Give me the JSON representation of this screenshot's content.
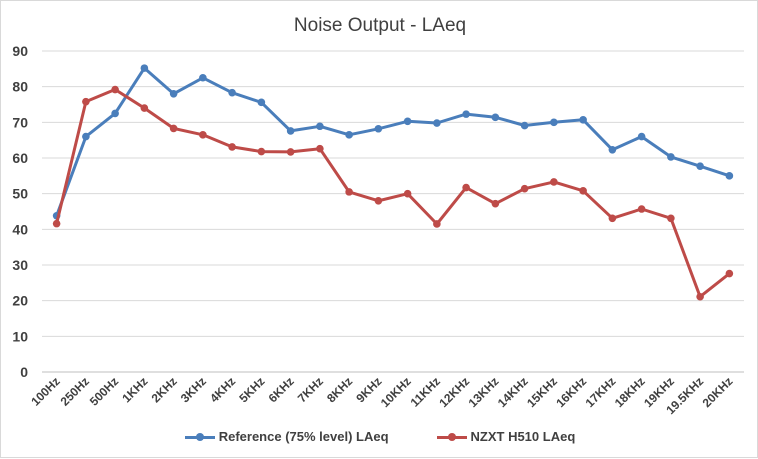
{
  "chart_data": {
    "type": "line",
    "title": "Noise Output - LAeq",
    "xlabel": "",
    "ylabel": "",
    "ylim": [
      0,
      90
    ],
    "yticks": [
      0,
      10,
      20,
      30,
      40,
      50,
      60,
      70,
      80,
      90
    ],
    "grid": true,
    "legend_position": "bottom",
    "categories": [
      "100Hz",
      "250Hz",
      "500Hz",
      "1KHz",
      "2KHz",
      "3KHz",
      "4KHz",
      "5KHz",
      "6KHz",
      "7KHz",
      "8KHz",
      "9KHz",
      "10KHz",
      "11KHz",
      "12KHz",
      "13KHz",
      "14KHz",
      "15KHz",
      "16KHz",
      "17KHz",
      "18KHz",
      "19KHz",
      "19.5KHz",
      "20KHz"
    ],
    "series": [
      {
        "name": "Reference (75% level) LAeq",
        "color": "#4a7ebb",
        "values": [
          43.8,
          66.0,
          72.5,
          85.2,
          78.0,
          82.5,
          78.3,
          75.6,
          67.6,
          68.9,
          66.5,
          68.2,
          70.3,
          69.8,
          72.3,
          71.4,
          69.1,
          70.0,
          70.7,
          62.3,
          66.0,
          60.3,
          57.7,
          55.0
        ]
      },
      {
        "name": "NZXT H510 LAeq",
        "color": "#be4b48",
        "values": [
          41.6,
          75.8,
          79.2,
          74.0,
          68.3,
          66.5,
          63.1,
          61.8,
          61.7,
          62.6,
          50.5,
          48.0,
          50.0,
          41.5,
          51.7,
          47.2,
          51.4,
          53.3,
          50.8,
          43.1,
          45.7,
          43.1,
          21.1,
          27.6
        ]
      }
    ]
  }
}
